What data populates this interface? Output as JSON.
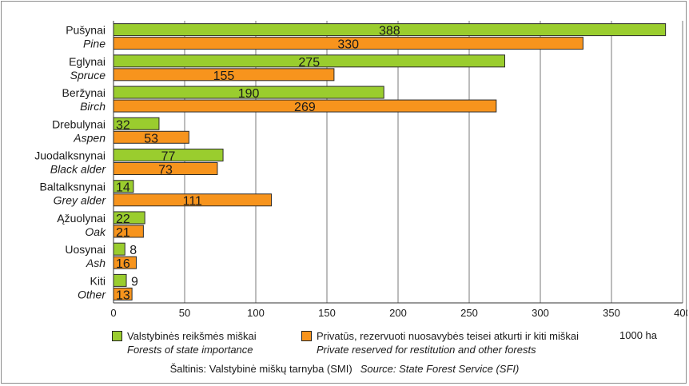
{
  "chart_data": {
    "type": "bar",
    "orientation": "horizontal",
    "categories": [
      {
        "lt": "Pušynai",
        "en": "Pine"
      },
      {
        "lt": "Eglynai",
        "en": "Spruce"
      },
      {
        "lt": "Beržynai",
        "en": "Birch"
      },
      {
        "lt": "Drebulynai",
        "en": "Aspen"
      },
      {
        "lt": "Juodalksnynai",
        "en": "Black alder"
      },
      {
        "lt": "Baltalksnynai",
        "en": "Grey alder"
      },
      {
        "lt": "Ąžuolynai",
        "en": "Oak"
      },
      {
        "lt": "Uosynai",
        "en": "Ash"
      },
      {
        "lt": "Kiti",
        "en": "Other"
      }
    ],
    "series": [
      {
        "name": "Valstybinės reikšmės miškai",
        "name_en": "Forests of state importance",
        "color": "#9ACD2E",
        "values": [
          388,
          275,
          190,
          32,
          77,
          14,
          22,
          8,
          9
        ]
      },
      {
        "name": "Privatūs, rezervuoti nuosavybės teisei atkurti ir kiti miškai",
        "name_en": "Private reserved for restitution and other forests",
        "color": "#F7941D",
        "values": [
          330,
          155,
          269,
          53,
          73,
          111,
          21,
          16,
          13
        ]
      }
    ],
    "xlim": [
      0,
      400
    ],
    "xticks": [
      0,
      50,
      100,
      150,
      200,
      250,
      300,
      350,
      400
    ],
    "grid": true,
    "legend_position": "bottom",
    "unit": "1000 ha",
    "source": {
      "lt": "Šaltinis: Valstybinė miškų tarnyba (SMI)",
      "en": "Source: State Forest Service (SFI)"
    }
  }
}
